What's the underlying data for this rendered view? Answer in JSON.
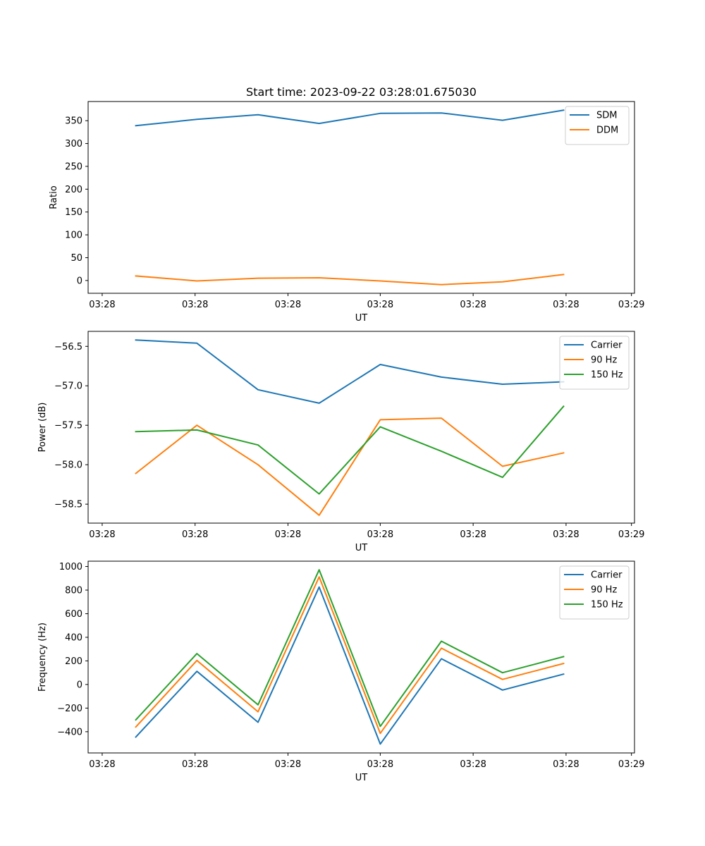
{
  "figure": {
    "title": "Start time: 2023-09-22 03:28:01.675030"
  },
  "chart_data": [
    {
      "type": "line",
      "title": "Start time: 2023-09-22 03:28:01.675030",
      "xlabel": "UT",
      "ylabel": "Ratio",
      "x": [
        1,
        2,
        3,
        4,
        5,
        6,
        7,
        8
      ],
      "xlim": [
        0.22,
        9.16
      ],
      "x_ticks": [
        0.45,
        1.97,
        3.49,
        5.0,
        6.52,
        8.04,
        9.11
      ],
      "x_tick_labels": [
        "03:28",
        "03:28",
        "03:28",
        "03:28",
        "03:28",
        "03:28",
        "03:29"
      ],
      "ylim": [
        -28,
        392
      ],
      "y_ticks": [
        0,
        50,
        100,
        150,
        200,
        250,
        300,
        350
      ],
      "y_tick_labels": [
        "0",
        "50",
        "100",
        "150",
        "200",
        "250",
        "300",
        "350"
      ],
      "legend": "top-right",
      "series": [
        {
          "name": "SDM",
          "color": "#1f77b4",
          "values": [
            339,
            353,
            363,
            344,
            366,
            367,
            351,
            373
          ]
        },
        {
          "name": "DDM",
          "color": "#ff7f0e",
          "values": [
            10,
            -1,
            5,
            6,
            -1,
            -9,
            -3,
            13
          ]
        }
      ]
    },
    {
      "type": "line",
      "title": "",
      "xlabel": "UT",
      "ylabel": "Power (dB)",
      "x": [
        1,
        2,
        3,
        4,
        5,
        6,
        7,
        8
      ],
      "xlim": [
        0.22,
        9.16
      ],
      "x_ticks": [
        0.45,
        1.97,
        3.49,
        5.0,
        6.52,
        8.04,
        9.11
      ],
      "x_tick_labels": [
        "03:28",
        "03:28",
        "03:28",
        "03:28",
        "03:28",
        "03:28",
        "03:29"
      ],
      "ylim": [
        -58.74,
        -56.31
      ],
      "y_ticks": [
        -58.5,
        -58.0,
        -57.5,
        -57.0,
        -56.5
      ],
      "y_tick_labels": [
        "−58.5",
        "−58.0",
        "−57.5",
        "−57.0",
        "−56.5"
      ],
      "legend": "top-right",
      "series": [
        {
          "name": "Carrier",
          "color": "#1f77b4",
          "values": [
            -56.42,
            -56.46,
            -57.05,
            -57.22,
            -56.73,
            -56.89,
            -56.98,
            -56.95
          ]
        },
        {
          "name": "90 Hz",
          "color": "#ff7f0e",
          "values": [
            -58.11,
            -57.5,
            -58.0,
            -58.64,
            -57.43,
            -57.41,
            -58.02,
            -57.85
          ]
        },
        {
          "name": "150 Hz",
          "color": "#2ca02c",
          "values": [
            -57.58,
            -57.56,
            -57.75,
            -58.37,
            -57.52,
            -57.83,
            -58.16,
            -57.26
          ]
        }
      ]
    },
    {
      "type": "line",
      "title": "",
      "xlabel": "UT",
      "ylabel": "Frequency (Hz)",
      "x": [
        1,
        2,
        3,
        4,
        5,
        6,
        7,
        8
      ],
      "xlim": [
        0.22,
        9.16
      ],
      "x_ticks": [
        0.45,
        1.97,
        3.49,
        5.0,
        6.52,
        8.04,
        9.11
      ],
      "x_tick_labels": [
        "03:28",
        "03:28",
        "03:28",
        "03:28",
        "03:28",
        "03:28",
        "03:29"
      ],
      "ylim": [
        -580,
        1045
      ],
      "y_ticks": [
        -400,
        -200,
        0,
        200,
        400,
        600,
        800,
        1000
      ],
      "y_tick_labels": [
        "−400",
        "−200",
        "0",
        "200",
        "400",
        "600",
        "800",
        "1000"
      ],
      "legend": "top-right",
      "series": [
        {
          "name": "Carrier",
          "color": "#1f77b4",
          "values": [
            -445,
            112,
            -320,
            826,
            -505,
            218,
            -47,
            88
          ]
        },
        {
          "name": "90 Hz",
          "color": "#ff7f0e",
          "values": [
            -360,
            204,
            -231,
            912,
            -414,
            308,
            43,
            178
          ]
        },
        {
          "name": "150 Hz",
          "color": "#2ca02c",
          "values": [
            -300,
            262,
            -172,
            972,
            -355,
            367,
            100,
            236
          ]
        }
      ]
    }
  ]
}
